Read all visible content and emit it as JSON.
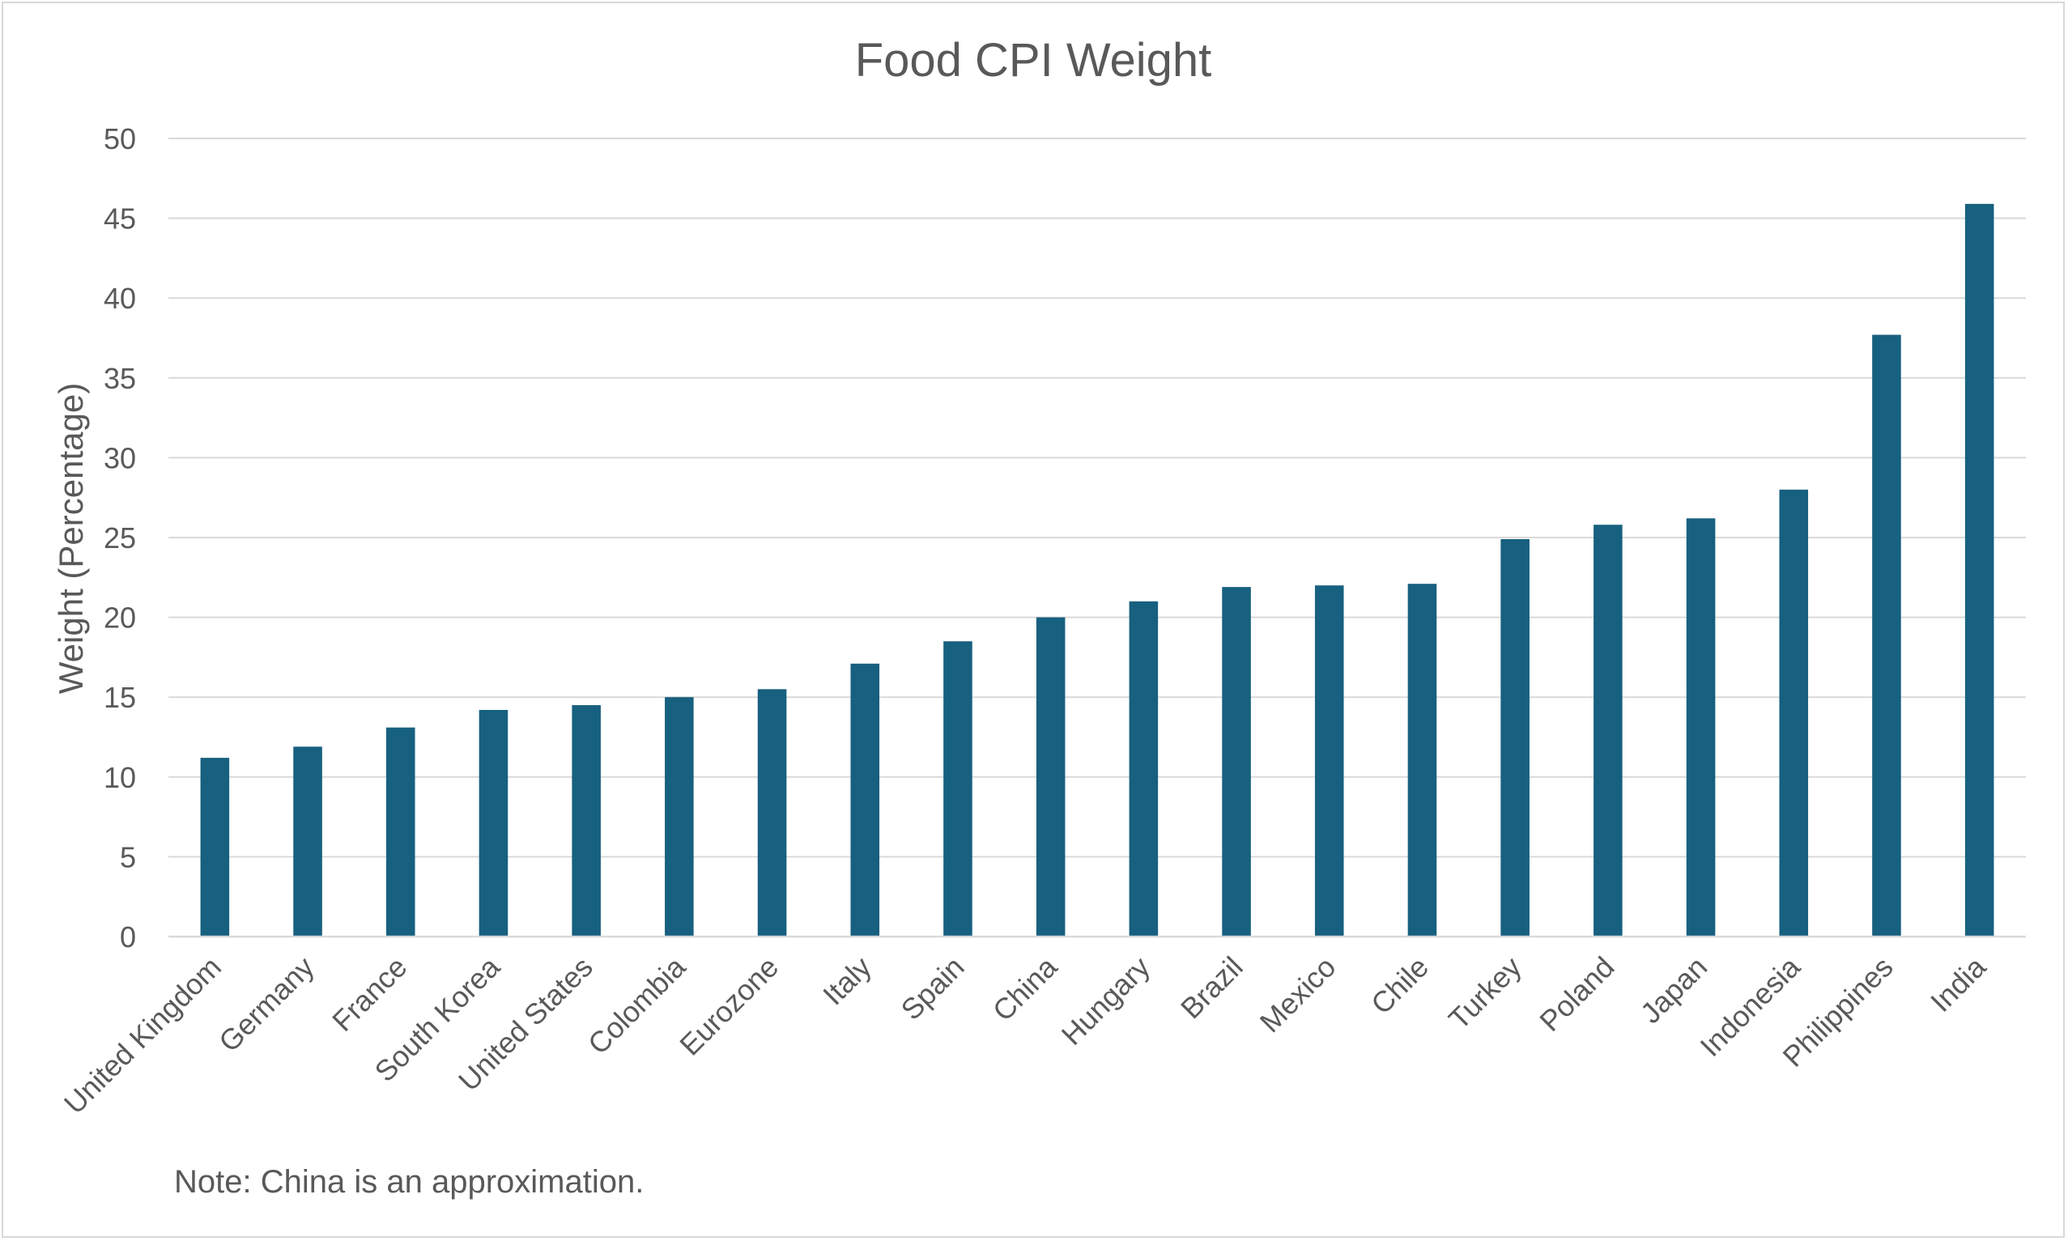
{
  "chart_data": {
    "type": "bar",
    "title": "Food CPI Weight",
    "xlabel": "",
    "ylabel": "Weight (Percentage)",
    "ylim": [
      0,
      50
    ],
    "yticks": [
      0,
      5,
      10,
      15,
      20,
      25,
      30,
      35,
      40,
      45,
      50
    ],
    "grid": true,
    "legend": "none",
    "bar_color": "#17607f",
    "categories": [
      "United Kingdom",
      "Germany",
      "France",
      "South Korea",
      "United States",
      "Colombia",
      "Eurozone",
      "Italy",
      "Spain",
      "China",
      "Hungary",
      "Brazil",
      "Mexico",
      "Chile",
      "Turkey",
      "Poland",
      "Japan",
      "Indonesia",
      "Philippines",
      "India"
    ],
    "values": [
      11.2,
      11.9,
      13.1,
      14.2,
      14.5,
      15.0,
      15.5,
      17.1,
      18.5,
      20.0,
      21.0,
      21.9,
      22.0,
      22.1,
      24.9,
      25.8,
      26.2,
      28.0,
      37.7,
      45.9
    ],
    "note": "Note: China is an approximation."
  }
}
